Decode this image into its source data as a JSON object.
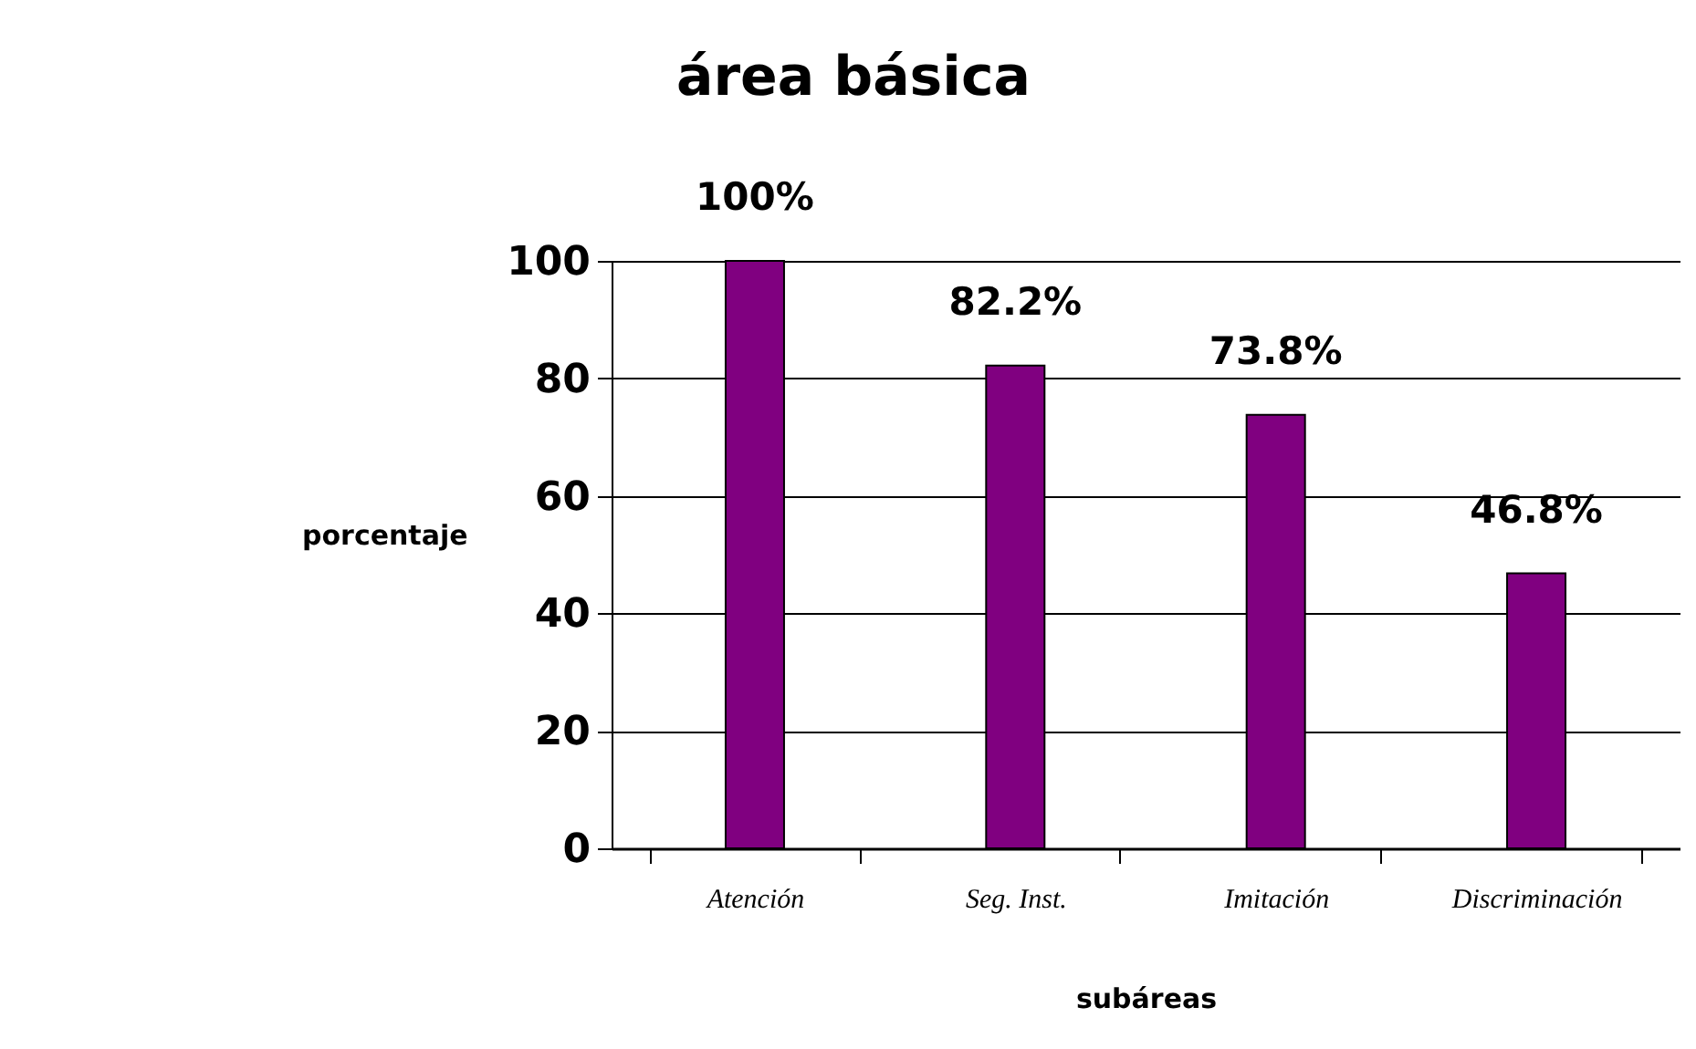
{
  "chart_data": {
    "type": "bar",
    "title": "área básica",
    "xlabel": "subáreas",
    "ylabel": "porcentaje",
    "categories": [
      "Atención",
      "Seg. Inst.",
      "Imitación",
      "Discriminación"
    ],
    "values": [
      100,
      82.2,
      73.8,
      46.8
    ],
    "value_labels": [
      "100%",
      "82.2%",
      "73.8%",
      "46.8%"
    ],
    "color": "#800080",
    "ylim": [
      0,
      100
    ],
    "yticks": [
      0,
      20,
      40,
      60,
      80,
      100
    ],
    "grid": "y"
  }
}
